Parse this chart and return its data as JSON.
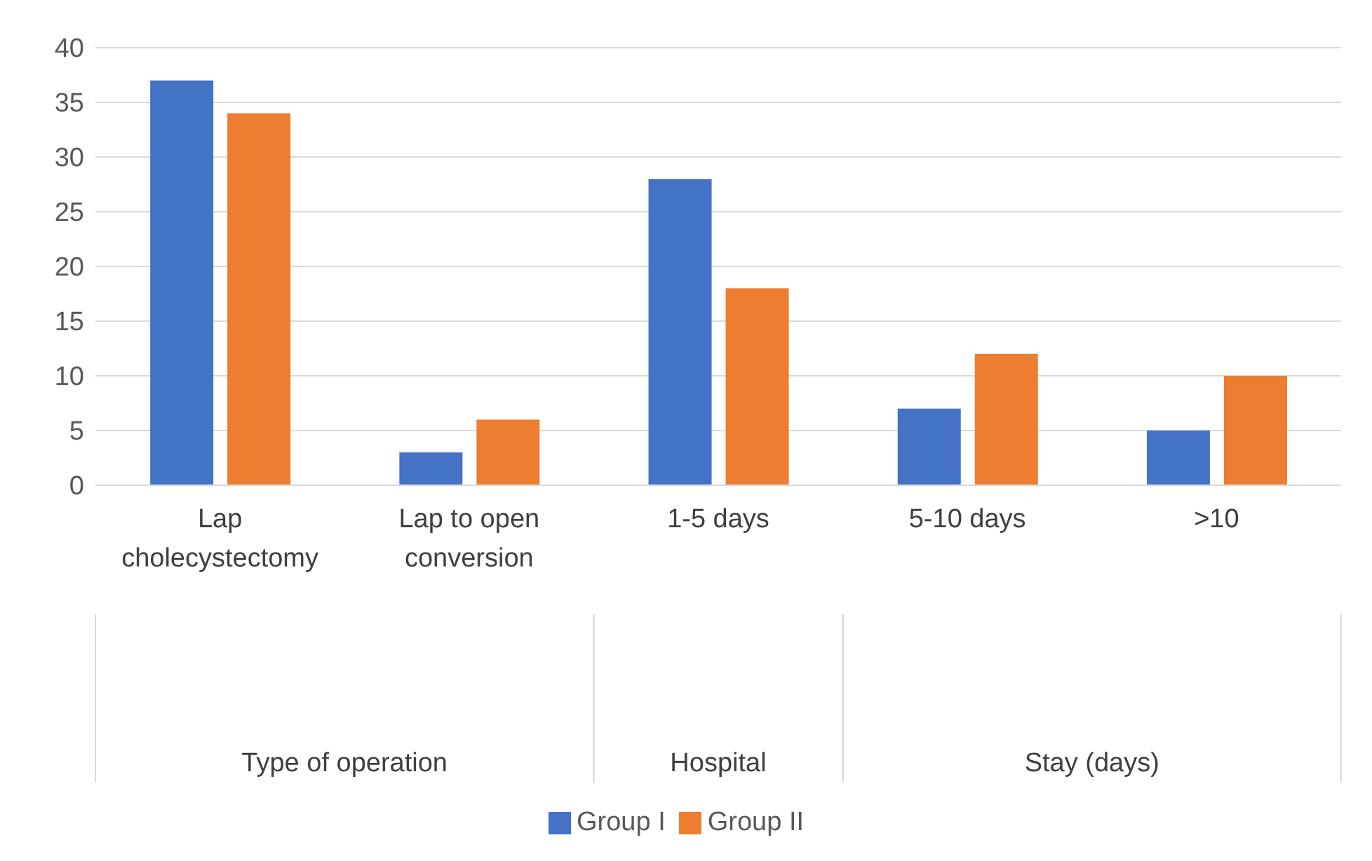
{
  "chart_data": {
    "type": "bar",
    "categories": [
      "Lap cholecystectomy",
      "Lap to open conversion",
      "1-5 days",
      "5-10 days",
      ">10"
    ],
    "series": [
      {
        "name": "Group I",
        "color": "#4472c4",
        "values": [
          37,
          3,
          28,
          7,
          5
        ]
      },
      {
        "name": "Group II",
        "color": "#ed7d31",
        "values": [
          34,
          6,
          18,
          12,
          10
        ]
      }
    ],
    "annotations": [
      "Type of operation",
      "Hospital",
      "Stay (days)"
    ],
    "ylim": [
      0,
      40
    ],
    "yticks": [
      0,
      5,
      10,
      15,
      20,
      25,
      30,
      35,
      40
    ],
    "grid": "y",
    "legend": "bottom"
  }
}
